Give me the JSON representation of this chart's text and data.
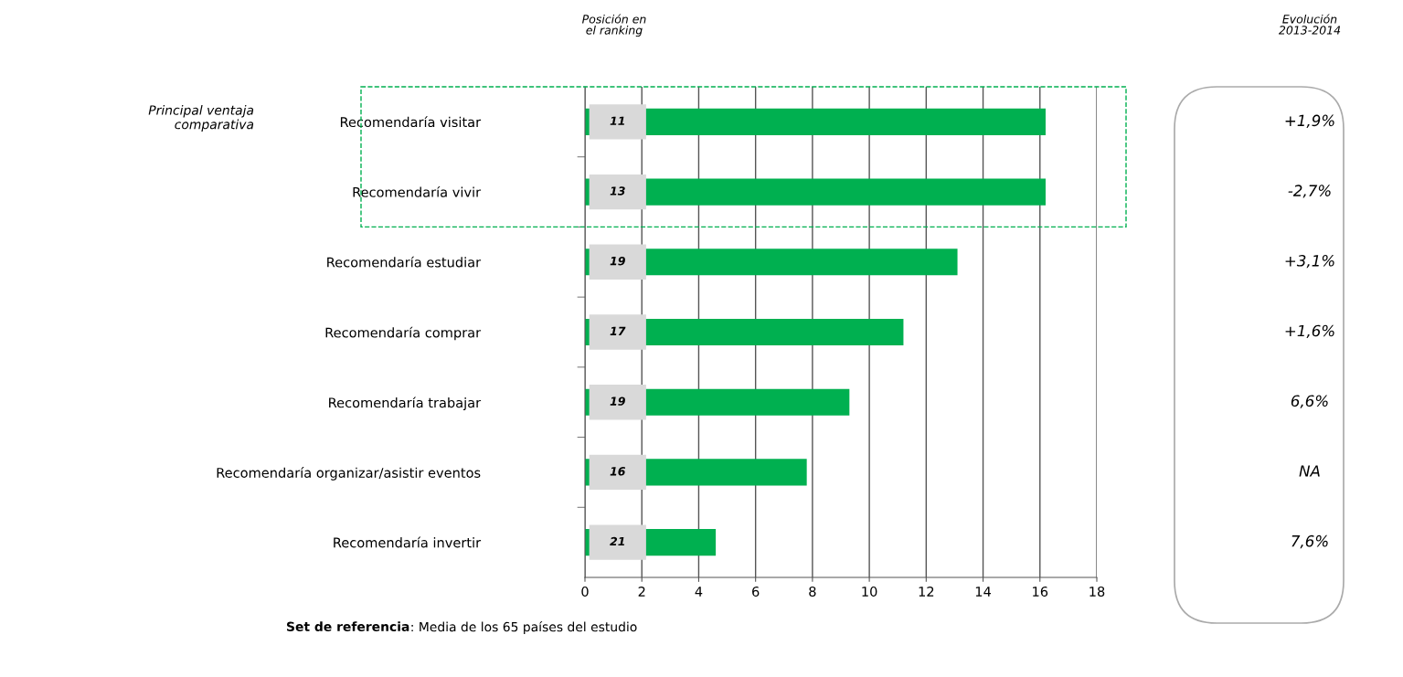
{
  "chart_data": {
    "type": "bar",
    "orientation": "horizontal",
    "categories": [
      "Recomendaría visitar",
      "Recomendaría vivir",
      "Recomendaría estudiar",
      "Recomendaría comprar",
      "Recomendaría trabajar",
      "Recomendaría organizar/asistir eventos",
      "Recomendaría invertir"
    ],
    "values": [
      16.2,
      16.2,
      13.1,
      11.2,
      9.3,
      7.8,
      4.6
    ],
    "color": "#00b050",
    "xlim": [
      0,
      18
    ],
    "xticks": [
      0,
      2,
      4,
      6,
      8,
      10,
      12,
      14,
      16,
      18
    ],
    "grid": "x",
    "annotations": [
      "Posición en el ranking",
      "Evolución 2013-2014",
      "Set de referencia: Media de los 65 países del estudio",
      "Principal ventaja comparativa",
      "11",
      "13",
      "19",
      "17",
      "19",
      "16",
      "21",
      "+1,9%",
      "-2,7%",
      "+3,1%",
      "+1,6%",
      "6,6%",
      "NA",
      "7,6%"
    ]
  }
}
